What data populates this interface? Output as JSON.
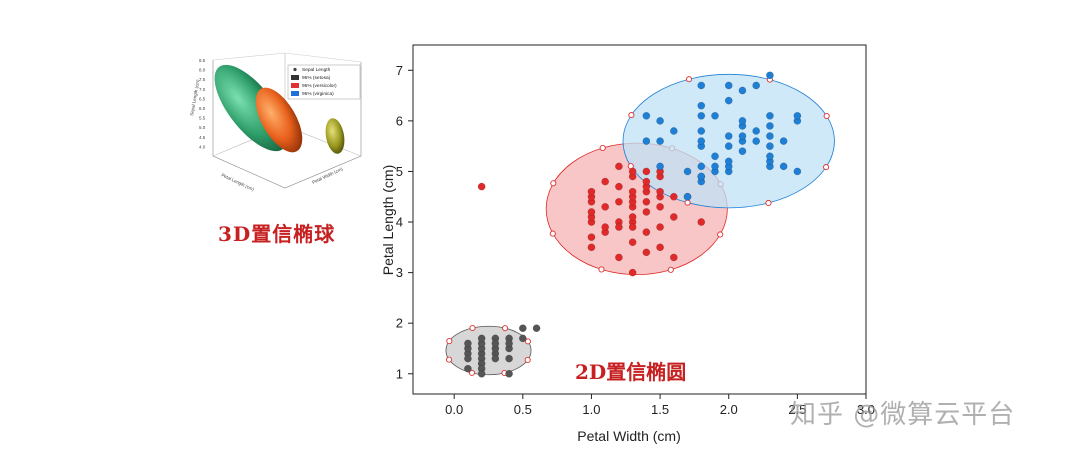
{
  "thumbnail": {
    "caption": "3D置信椭球",
    "legend": [
      {
        "label": "Sepal Length",
        "color": "#404040",
        "marker": "dot"
      },
      {
        "label": "95% (setosa)",
        "color": "#333333",
        "marker": "box"
      },
      {
        "label": "95% (versicolor)",
        "color": "#e03030",
        "marker": "box"
      },
      {
        "label": "95% (virginica)",
        "color": "#1e6fd9",
        "marker": "box"
      }
    ],
    "z_ticks": [
      "8.5",
      "8.0",
      "7.5",
      "7.0",
      "6.5",
      "6.0",
      "5.5",
      "5.0",
      "4.5",
      "4.0"
    ],
    "axis_labels": {
      "x": "Petal Length (cm)",
      "y": "Petal Width (cm)",
      "z": "Sepal Length (cm)"
    },
    "ellipsoid_colors": {
      "green": "#2e9e6a",
      "orange": "#e8601c",
      "olive": "#9a9a20"
    }
  },
  "chart_caption": "2D置信椭圆",
  "watermark": "知乎 @微算云平台",
  "chart_data": {
    "type": "scatter",
    "xlabel": "Petal Width (cm)",
    "ylabel": "Petal Length (cm)",
    "xlim": [
      -0.3,
      3.0
    ],
    "ylim": [
      0.6,
      7.5
    ],
    "xticks": [
      "0.0",
      "0.5",
      "1.0",
      "1.5",
      "2.0",
      "2.5",
      "3.0"
    ],
    "yticks": [
      "1",
      "2",
      "3",
      "4",
      "5",
      "6",
      "7"
    ],
    "series": [
      {
        "color": "#555555",
        "ellipse_fill": "#c9c9c9",
        "ellipse": {
          "cx": 0.25,
          "cy": 1.46,
          "rx": 0.31,
          "ry": 0.48,
          "angle": 0
        },
        "points": [
          [
            0.1,
            1.4
          ],
          [
            0.1,
            1.5
          ],
          [
            0.1,
            1.3
          ],
          [
            0.1,
            1.1
          ],
          [
            0.1,
            1.6
          ],
          [
            0.2,
            1.4
          ],
          [
            0.2,
            1.3
          ],
          [
            0.2,
            1.5
          ],
          [
            0.2,
            1.6
          ],
          [
            0.2,
            1.2
          ],
          [
            0.2,
            1.7
          ],
          [
            0.2,
            1.1
          ],
          [
            0.2,
            1.0
          ],
          [
            0.3,
            1.4
          ],
          [
            0.3,
            1.5
          ],
          [
            0.3,
            1.3
          ],
          [
            0.3,
            1.7
          ],
          [
            0.3,
            1.6
          ],
          [
            0.4,
            1.5
          ],
          [
            0.4,
            1.7
          ],
          [
            0.4,
            1.3
          ],
          [
            0.4,
            1.6
          ],
          [
            0.4,
            1.0
          ],
          [
            0.5,
            1.7
          ],
          [
            0.5,
            1.9
          ],
          [
            0.6,
            1.9
          ]
        ]
      },
      {
        "color": "#e02a2a",
        "ellipse_fill": "#f6b3b3",
        "ellipse": {
          "cx": 1.33,
          "cy": 4.26,
          "rx": 0.66,
          "ry": 1.3,
          "angle": 0
        },
        "points": [
          [
            0.2,
            4.7
          ],
          [
            1.0,
            3.5
          ],
          [
            1.0,
            3.7
          ],
          [
            1.0,
            4.0
          ],
          [
            1.0,
            4.1
          ],
          [
            1.0,
            4.4
          ],
          [
            1.0,
            4.5
          ],
          [
            1.0,
            4.6
          ],
          [
            1.0,
            4.2
          ],
          [
            1.1,
            3.8
          ],
          [
            1.1,
            4.8
          ],
          [
            1.1,
            3.9
          ],
          [
            1.1,
            4.3
          ],
          [
            1.2,
            4.0
          ],
          [
            1.2,
            4.4
          ],
          [
            1.2,
            4.7
          ],
          [
            1.2,
            3.9
          ],
          [
            1.2,
            5.1
          ],
          [
            1.2,
            3.3
          ],
          [
            1.3,
            3.0
          ],
          [
            1.3,
            4.0
          ],
          [
            1.3,
            4.1
          ],
          [
            1.3,
            4.3
          ],
          [
            1.3,
            4.4
          ],
          [
            1.3,
            4.5
          ],
          [
            1.3,
            4.6
          ],
          [
            1.3,
            4.9
          ],
          [
            1.3,
            5.0
          ],
          [
            1.3,
            3.6
          ],
          [
            1.3,
            3.9
          ],
          [
            1.4,
            3.8
          ],
          [
            1.4,
            4.2
          ],
          [
            1.4,
            4.4
          ],
          [
            1.4,
            4.6
          ],
          [
            1.4,
            4.7
          ],
          [
            1.4,
            4.8
          ],
          [
            1.4,
            5.0
          ],
          [
            1.4,
            3.4
          ],
          [
            1.5,
            3.5
          ],
          [
            1.5,
            3.9
          ],
          [
            1.5,
            4.3
          ],
          [
            1.5,
            4.5
          ],
          [
            1.5,
            4.6
          ],
          [
            1.5,
            4.9
          ],
          [
            1.5,
            5.0
          ],
          [
            1.6,
            4.5
          ],
          [
            1.6,
            3.3
          ],
          [
            1.6,
            4.1
          ],
          [
            1.7,
            4.5
          ],
          [
            1.8,
            4.0
          ]
        ]
      },
      {
        "color": "#1f7fd4",
        "ellipse_fill": "#bfe2f7",
        "ellipse": {
          "cx": 2.0,
          "cy": 5.6,
          "rx": 0.77,
          "ry": 1.32,
          "angle": 0
        },
        "points": [
          [
            1.4,
            5.6
          ],
          [
            1.4,
            6.1
          ],
          [
            1.5,
            5.1
          ],
          [
            1.5,
            5.6
          ],
          [
            1.5,
            6.0
          ],
          [
            1.6,
            5.8
          ],
          [
            1.7,
            4.5
          ],
          [
            1.7,
            5.0
          ],
          [
            1.8,
            4.8
          ],
          [
            1.8,
            4.9
          ],
          [
            1.8,
            5.1
          ],
          [
            1.8,
            5.5
          ],
          [
            1.8,
            5.6
          ],
          [
            1.8,
            5.8
          ],
          [
            1.8,
            6.1
          ],
          [
            1.8,
            6.3
          ],
          [
            1.8,
            6.7
          ],
          [
            1.8,
            4.9
          ],
          [
            1.9,
            5.0
          ],
          [
            1.9,
            5.1
          ],
          [
            1.9,
            5.3
          ],
          [
            1.9,
            6.1
          ],
          [
            2.0,
            5.0
          ],
          [
            2.0,
            5.1
          ],
          [
            2.0,
            5.2
          ],
          [
            2.0,
            5.5
          ],
          [
            2.0,
            5.7
          ],
          [
            2.0,
            6.4
          ],
          [
            2.0,
            6.7
          ],
          [
            2.1,
            5.4
          ],
          [
            2.1,
            5.6
          ],
          [
            2.1,
            5.7
          ],
          [
            2.1,
            5.9
          ],
          [
            2.1,
            6.0
          ],
          [
            2.1,
            6.6
          ],
          [
            2.2,
            5.6
          ],
          [
            2.2,
            5.8
          ],
          [
            2.2,
            6.7
          ],
          [
            2.3,
            5.1
          ],
          [
            2.3,
            5.2
          ],
          [
            2.3,
            5.3
          ],
          [
            2.3,
            5.5
          ],
          [
            2.3,
            5.7
          ],
          [
            2.3,
            5.9
          ],
          [
            2.3,
            6.1
          ],
          [
            2.3,
            6.9
          ],
          [
            2.4,
            5.1
          ],
          [
            2.4,
            5.6
          ],
          [
            2.5,
            5.0
          ],
          [
            2.5,
            6.0
          ],
          [
            2.5,
            6.1
          ]
        ]
      }
    ]
  }
}
